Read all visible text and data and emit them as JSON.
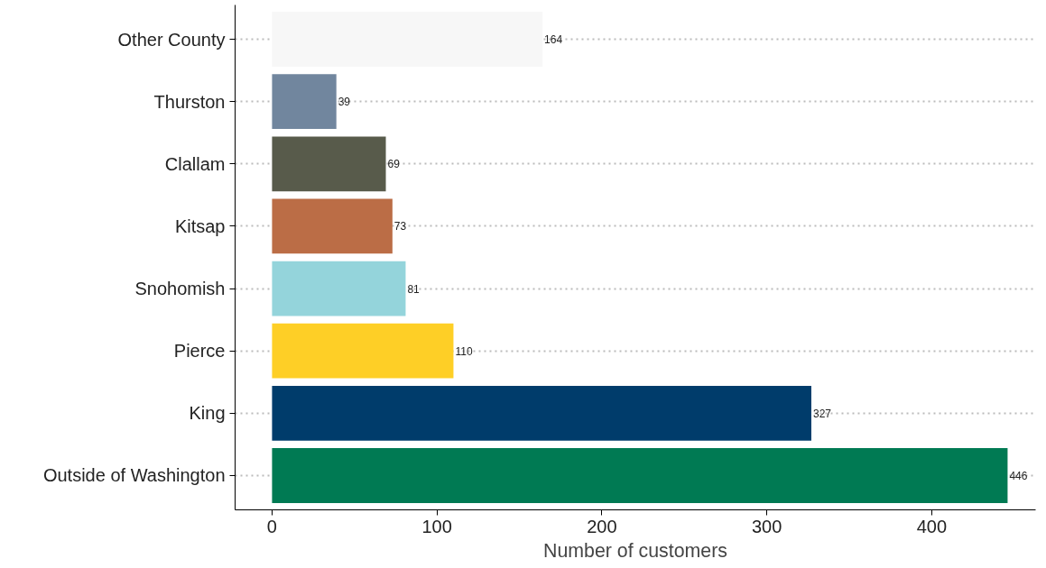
{
  "chart_data": {
    "type": "bar",
    "orientation": "horizontal",
    "xlabel": "Number of customers",
    "categories": [
      "Other County",
      "Thurston",
      "Clallam",
      "Kitsap",
      "Snohomish",
      "Pierce",
      "King",
      "Outside of Washington"
    ],
    "values": [
      164,
      39,
      69,
      73,
      81,
      110,
      327,
      446
    ],
    "colors": [
      "#f7f7f7",
      "#71869e",
      "#585b4b",
      "#bb6d46",
      "#94d4db",
      "#fecf26",
      "#003c6b",
      "#007a53"
    ],
    "xlim": [
      -22.4,
      463
    ],
    "xticks": [
      0,
      100,
      200,
      300,
      400
    ],
    "grid": "y",
    "data_labels": true
  }
}
